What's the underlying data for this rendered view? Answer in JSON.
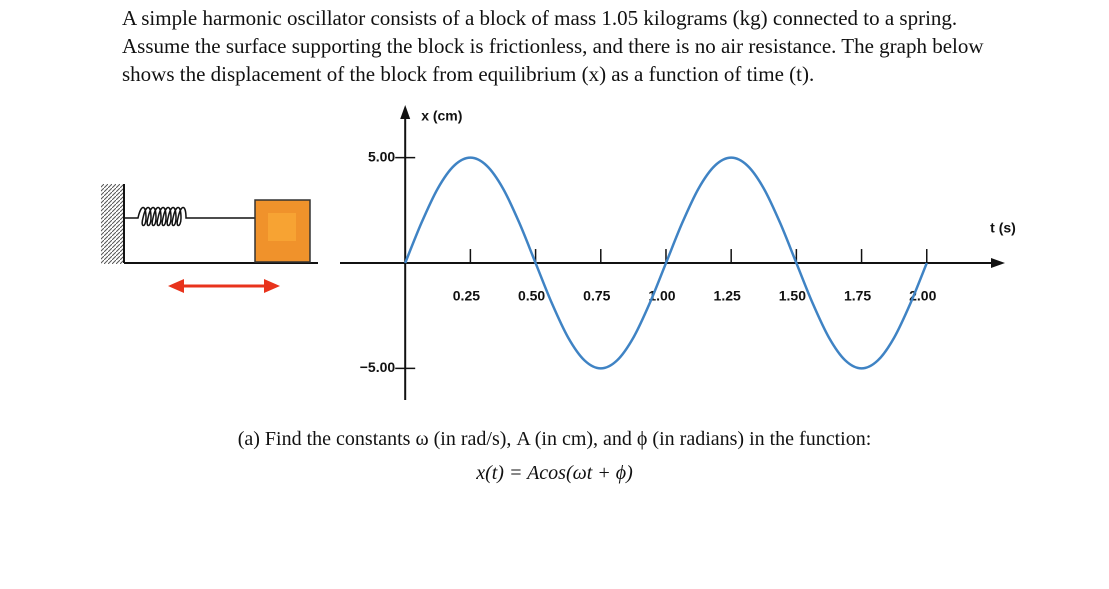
{
  "problem": {
    "intro": "A simple harmonic oscillator consists of a block of mass 1.05 kilograms (kg) connected to a spring. Assume the surface supporting the block is  frictionless, and there is no air resistance. The graph below shows the displacement of the block from equilibrium (x) as a function of time (t).",
    "question": "(a) Find the constants ω (in rad/s), A (in cm), and ϕ (in radians) in the function:",
    "formula": "x(t) = Acos(ωt + ϕ)"
  },
  "chart_data": {
    "type": "line",
    "x_label": "t (s)",
    "y_label": "x (cm)",
    "color": "#3f83c4",
    "x": [
      0,
      0.0625,
      0.125,
      0.1875,
      0.25,
      0.3125,
      0.375,
      0.4375,
      0.5,
      0.5625,
      0.625,
      0.6875,
      0.75,
      0.8125,
      0.875,
      0.9375,
      1,
      1.0625,
      1.125,
      1.1875,
      1.25,
      1.3125,
      1.375,
      1.4375,
      1.5,
      1.5625,
      1.625,
      1.6875,
      1.75,
      1.8125,
      1.875,
      1.9375,
      2
    ],
    "values": [
      0,
      1.91,
      3.54,
      4.62,
      5,
      4.62,
      3.54,
      1.91,
      0,
      -1.91,
      -3.54,
      -4.62,
      -5,
      -4.62,
      -3.54,
      -1.91,
      0,
      1.91,
      3.54,
      4.62,
      5,
      4.62,
      3.54,
      1.91,
      0,
      -1.91,
      -3.54,
      -4.62,
      -5,
      -4.62,
      -3.54,
      -1.91,
      0
    ],
    "xlim": [
      -0.25,
      2.3
    ],
    "ylim": [
      -6.5,
      7.5
    ],
    "xticks": [
      0.25,
      {
        "value": 0.5,
        "label": "0.50"
      },
      0.75,
      {
        "value": 1,
        "label": "1.00"
      },
      1.25,
      {
        "value": 1.5,
        "label": "1.50"
      },
      1.75,
      {
        "value": 2,
        "label": "2.00"
      }
    ],
    "yticks": [
      {
        "value": 5,
        "label": "5.00"
      },
      {
        "value": -5,
        "label": "−5.00"
      }
    ]
  }
}
